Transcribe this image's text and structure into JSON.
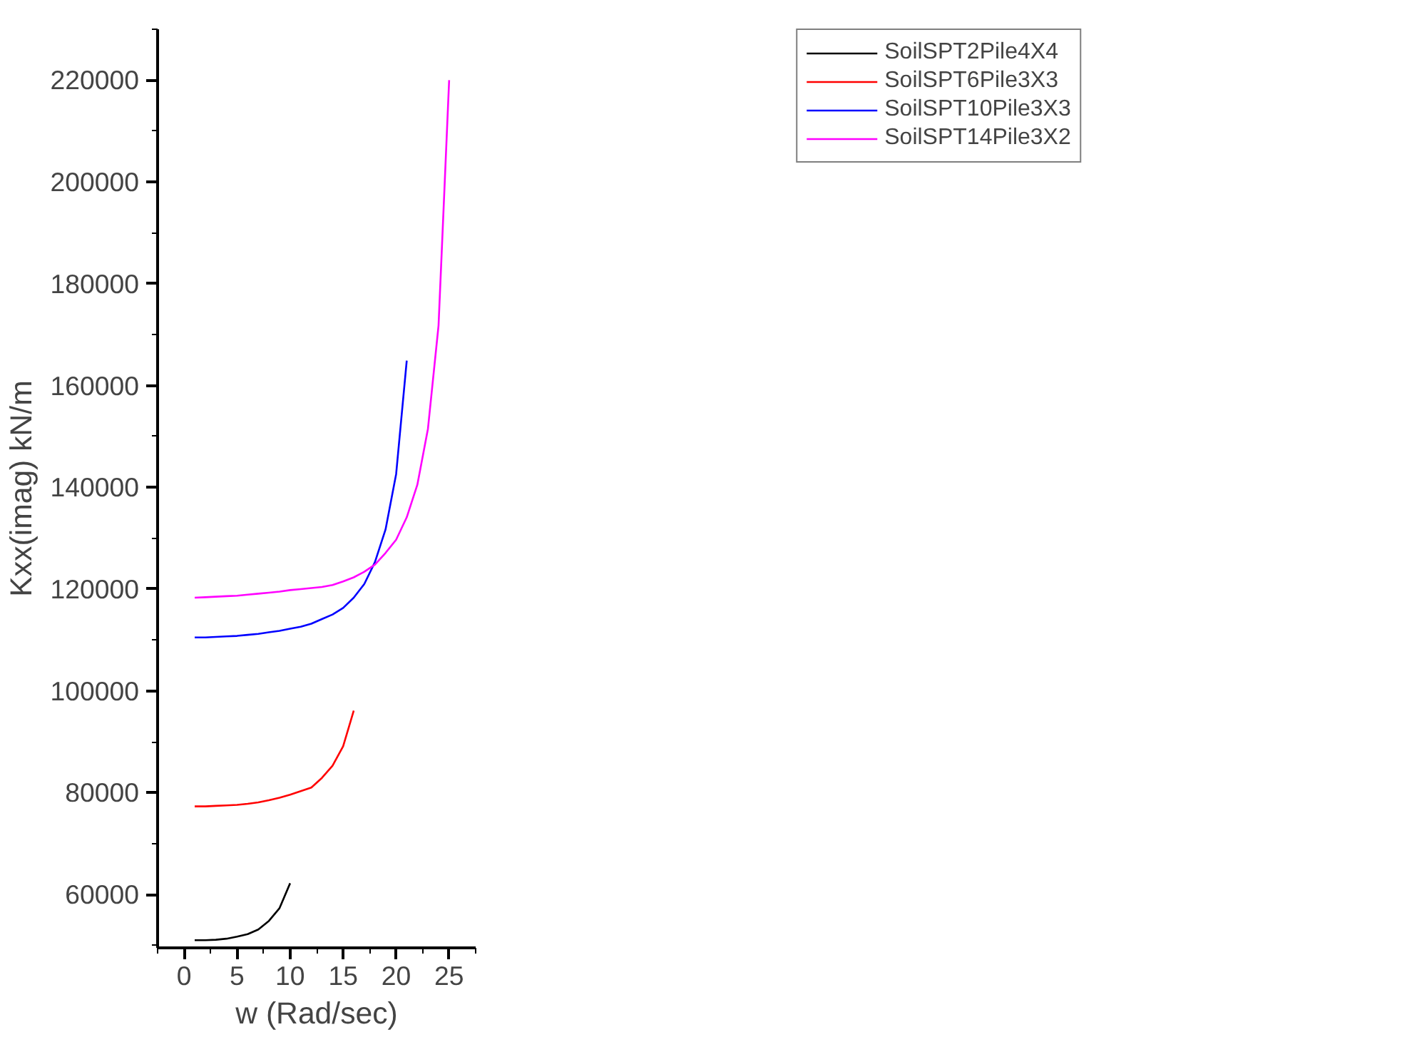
{
  "chart_data": {
    "type": "line",
    "xlabel": "w (Rad/sec)",
    "ylabel": "Kxx(imag) kN/m",
    "x": [
      1,
      2,
      3,
      4,
      5,
      6,
      7,
      8,
      9,
      10,
      11,
      12,
      13,
      14,
      15,
      16,
      17,
      18,
      19,
      20,
      21,
      22,
      23,
      24,
      25
    ],
    "xlim": [
      -2.5,
      27.5
    ],
    "xticks": [
      0,
      5,
      10,
      15,
      20,
      25
    ],
    "ylim": [
      49500,
      230000
    ],
    "yticks": [
      60000,
      80000,
      100000,
      120000,
      140000,
      160000,
      180000,
      200000,
      220000
    ],
    "grid": false,
    "legend": "top right",
    "marker": "none",
    "line_style": "solid",
    "series": [
      {
        "name": "SoilSPT2Pile4X4",
        "color": "#000000",
        "values": [
          51000,
          51000,
          51100,
          51300,
          51700,
          52200,
          53100,
          54800,
          57300,
          62200,
          null,
          null,
          null,
          null,
          null,
          null,
          null,
          null,
          null,
          null,
          null,
          null,
          null,
          null,
          null
        ]
      },
      {
        "name": "SoilSPT6Pile3X3",
        "color": "#ff0000",
        "values": [
          77300,
          77300,
          77400,
          77500,
          77600,
          77800,
          78100,
          78500,
          79000,
          79600,
          80300,
          81000,
          82900,
          85300,
          89100,
          96100,
          null,
          null,
          null,
          null,
          null,
          null,
          null,
          null,
          null
        ]
      },
      {
        "name": "SoilSPT10Pile3X3",
        "color": "#0000ff",
        "values": [
          110500,
          110500,
          110600,
          110700,
          110800,
          111000,
          111200,
          111500,
          111800,
          112200,
          112600,
          113200,
          114100,
          115000,
          116300,
          118300,
          121000,
          125300,
          131700,
          142600,
          164900,
          null,
          null,
          null,
          null
        ]
      },
      {
        "name": "SoilSPT14Pile3X2",
        "color": "#ff00ff",
        "values": [
          118300,
          118400,
          118500,
          118600,
          118700,
          118900,
          119100,
          119300,
          119500,
          119800,
          120000,
          120200,
          120400,
          120800,
          121500,
          122300,
          123400,
          124800,
          127100,
          129700,
          134100,
          140500,
          151500,
          171800,
          220000
        ]
      }
    ]
  }
}
